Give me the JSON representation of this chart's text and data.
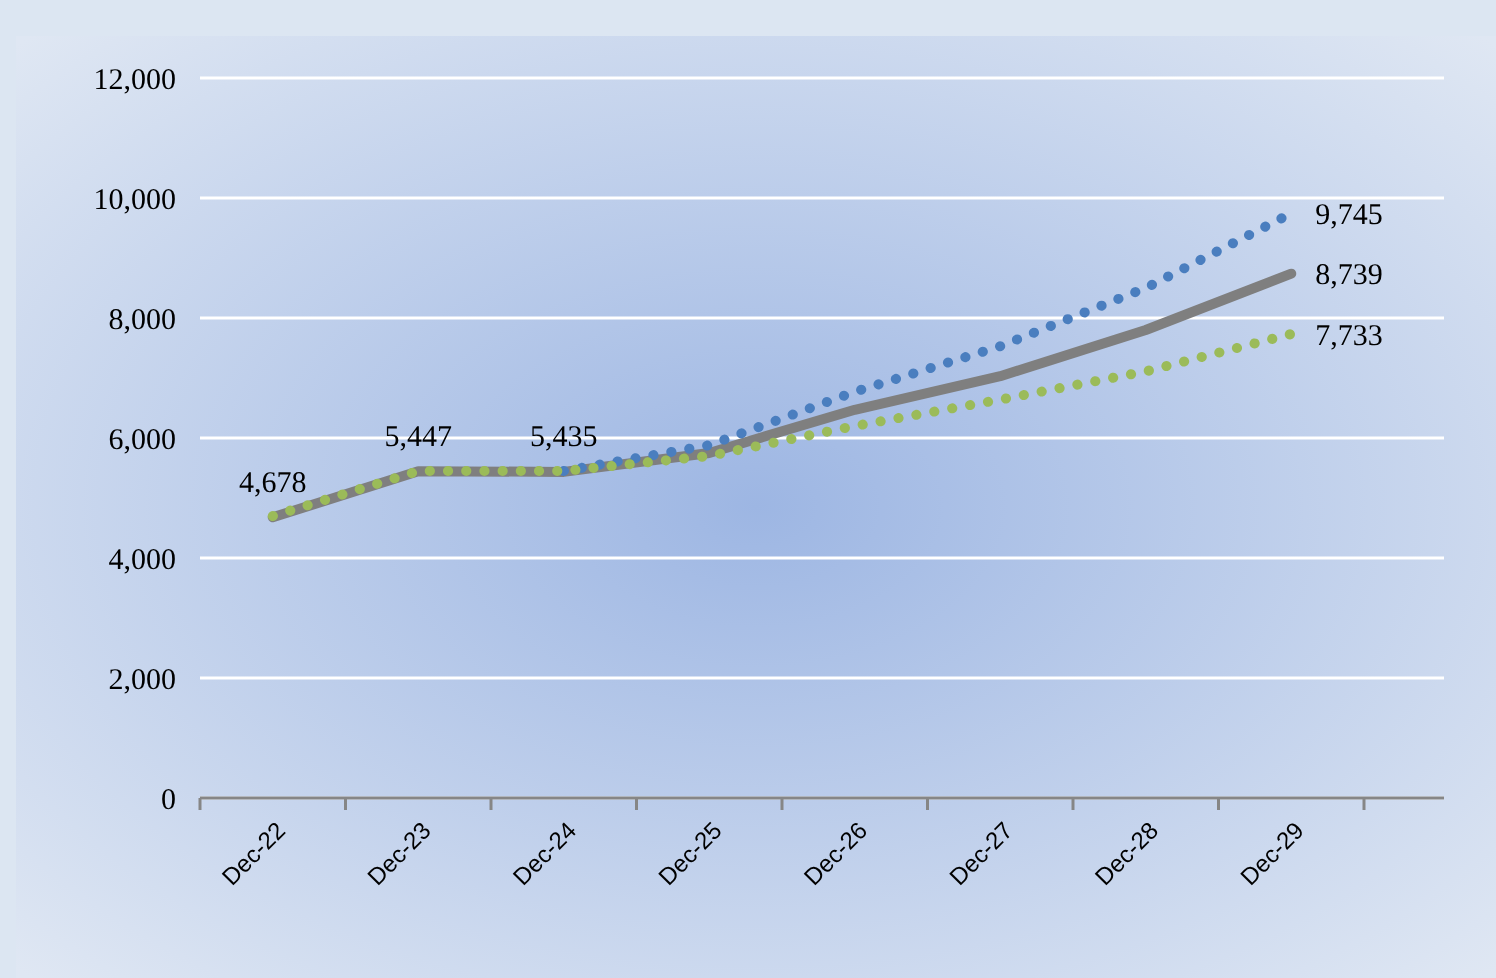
{
  "chart_data": {
    "type": "line",
    "categories": [
      "Dec-22",
      "Dec-23",
      "Dec-24",
      "Dec-25",
      "Dec-26",
      "Dec-27",
      "Dec-28",
      "Dec-29"
    ],
    "series": [
      {
        "color": "#7f7f7f",
        "line_style": "solid",
        "values": [
          4678,
          5447,
          5435,
          5750,
          6470,
          7030,
          7800,
          8739
        ],
        "value_labels": [
          "4,678",
          "5,447",
          "5,435",
          null,
          null,
          null,
          null,
          "8,739"
        ]
      },
      {
        "color": "#4a7ebf",
        "line_style": "dotted",
        "values": [
          null,
          null,
          5450,
          5880,
          6770,
          7530,
          8500,
          9745
        ],
        "value_labels": [
          null,
          null,
          null,
          null,
          null,
          null,
          null,
          "9,745"
        ]
      },
      {
        "color": "#9bbb59",
        "line_style": "dotted",
        "values": [
          4700,
          5450,
          5450,
          5700,
          6200,
          6640,
          7110,
          7733
        ],
        "value_labels": [
          null,
          null,
          null,
          null,
          null,
          null,
          null,
          "7,733"
        ]
      }
    ],
    "ylim": [
      0,
      12000
    ],
    "yticks": [
      {
        "value": 0,
        "label": "0"
      },
      {
        "value": 2000,
        "label": "2,000"
      },
      {
        "value": 4000,
        "label": "4,000"
      },
      {
        "value": 6000,
        "label": "6,000"
      },
      {
        "value": 8000,
        "label": "8,000"
      },
      {
        "value": 10000,
        "label": "10,000"
      },
      {
        "value": 12000,
        "label": "12,000"
      }
    ],
    "grid": "y",
    "marker": "none"
  }
}
